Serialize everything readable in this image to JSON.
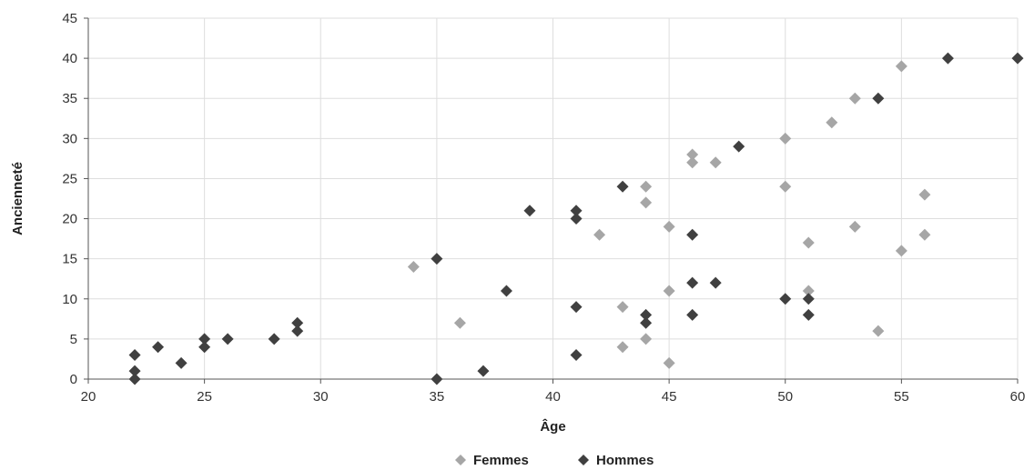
{
  "chart_data": {
    "type": "scatter",
    "title": "",
    "xlabel": "Âge",
    "ylabel": "Ancienneté",
    "xlim": [
      20,
      60
    ],
    "ylim": [
      0,
      45
    ],
    "xticks": [
      20,
      25,
      30,
      35,
      40,
      45,
      50,
      55,
      60
    ],
    "yticks": [
      0,
      5,
      10,
      15,
      20,
      25,
      30,
      35,
      40,
      45
    ],
    "grid": true,
    "legend": "bottom-center",
    "series": [
      {
        "name": "Femmes",
        "color": "#a6a6a6",
        "points": [
          [
            34,
            14
          ],
          [
            36,
            7
          ],
          [
            42,
            18
          ],
          [
            43,
            9
          ],
          [
            43,
            4
          ],
          [
            44,
            24
          ],
          [
            44,
            22
          ],
          [
            44,
            5
          ],
          [
            45,
            19
          ],
          [
            45,
            11
          ],
          [
            45,
            2
          ],
          [
            46,
            28
          ],
          [
            46,
            27
          ],
          [
            47,
            27
          ],
          [
            50,
            30
          ],
          [
            50,
            24
          ],
          [
            51,
            17
          ],
          [
            51,
            11
          ],
          [
            52,
            32
          ],
          [
            53,
            35
          ],
          [
            53,
            19
          ],
          [
            54,
            6
          ],
          [
            55,
            39
          ],
          [
            55,
            16
          ],
          [
            56,
            23
          ],
          [
            56,
            18
          ]
        ]
      },
      {
        "name": "Hommes",
        "color": "#404040",
        "points": [
          [
            22,
            3
          ],
          [
            22,
            1
          ],
          [
            22,
            0
          ],
          [
            23,
            4
          ],
          [
            24,
            2
          ],
          [
            25,
            5
          ],
          [
            25,
            4
          ],
          [
            26,
            5
          ],
          [
            28,
            5
          ],
          [
            29,
            7
          ],
          [
            29,
            6
          ],
          [
            35,
            15
          ],
          [
            35,
            0
          ],
          [
            37,
            1
          ],
          [
            38,
            11
          ],
          [
            39,
            21
          ],
          [
            41,
            21
          ],
          [
            41,
            20
          ],
          [
            41,
            9
          ],
          [
            41,
            3
          ],
          [
            43,
            24
          ],
          [
            44,
            8
          ],
          [
            44,
            7
          ],
          [
            46,
            18
          ],
          [
            46,
            12
          ],
          [
            46,
            8
          ],
          [
            47,
            12
          ],
          [
            48,
            29
          ],
          [
            50,
            10
          ],
          [
            51,
            10
          ],
          [
            51,
            8
          ],
          [
            54,
            35
          ],
          [
            57,
            40
          ],
          [
            60,
            40
          ]
        ]
      }
    ]
  }
}
